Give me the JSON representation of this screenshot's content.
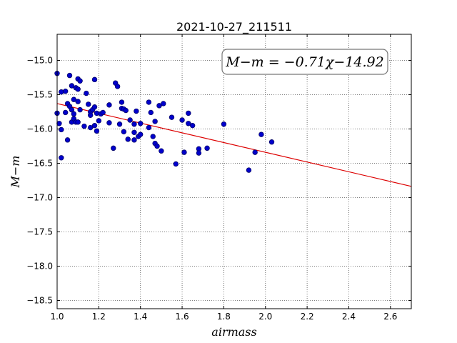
{
  "chart_data": {
    "type": "scatter",
    "title": "2021-10-27_211511",
    "xlabel": "airmass",
    "ylabel": "M−m",
    "xlim": [
      1.0,
      2.7
    ],
    "ylim": [
      -18.62,
      -14.62
    ],
    "x_ticks": [
      "1.0",
      "1.2",
      "1.4",
      "1.6",
      "1.8",
      "2.0",
      "2.2",
      "2.4",
      "2.6"
    ],
    "y_ticks": [
      "−15.0",
      "−15.5",
      "−16.0",
      "−16.5",
      "−17.0",
      "−17.5",
      "−18.0",
      "−18.5"
    ],
    "grid": true,
    "annotation": "M−m = −0.71χ−14.92",
    "fit": {
      "slope": -0.71,
      "intercept": -14.92,
      "color": "#dd0000"
    },
    "point_color": "#0000cc",
    "series": [
      {
        "points": [
          [
            1.0,
            -15.19
          ],
          [
            1.0,
            -15.77
          ],
          [
            1.01,
            -15.92
          ],
          [
            1.02,
            -16.42
          ],
          [
            1.02,
            -15.46
          ],
          [
            1.02,
            -16.01
          ],
          [
            1.04,
            -15.45
          ],
          [
            1.04,
            -15.76
          ],
          [
            1.05,
            -16.16
          ],
          [
            1.05,
            -15.63
          ],
          [
            1.06,
            -15.22
          ],
          [
            1.06,
            -15.67
          ],
          [
            1.07,
            -15.37
          ],
          [
            1.07,
            -15.72
          ],
          [
            1.07,
            -15.9
          ],
          [
            1.08,
            -15.57
          ],
          [
            1.08,
            -15.78
          ],
          [
            1.08,
            -15.85
          ],
          [
            1.09,
            -15.4
          ],
          [
            1.09,
            -15.9
          ],
          [
            1.1,
            -15.6
          ],
          [
            1.1,
            -15.27
          ],
          [
            1.1,
            -15.42
          ],
          [
            1.1,
            -15.9
          ],
          [
            1.11,
            -15.3
          ],
          [
            1.11,
            -15.72
          ],
          [
            1.13,
            -15.96
          ],
          [
            1.14,
            -15.48
          ],
          [
            1.15,
            -15.64
          ],
          [
            1.16,
            -15.75
          ],
          [
            1.16,
            -15.8
          ],
          [
            1.16,
            -15.98
          ],
          [
            1.17,
            -15.72
          ],
          [
            1.18,
            -15.68
          ],
          [
            1.18,
            -15.28
          ],
          [
            1.18,
            -15.95
          ],
          [
            1.19,
            -16.03
          ],
          [
            1.19,
            -15.77
          ],
          [
            1.2,
            -15.88
          ],
          [
            1.21,
            -15.78
          ],
          [
            1.22,
            -15.76
          ],
          [
            1.25,
            -15.65
          ],
          [
            1.25,
            -15.91
          ],
          [
            1.27,
            -16.28
          ],
          [
            1.28,
            -15.33
          ],
          [
            1.29,
            -15.38
          ],
          [
            1.3,
            -15.93
          ],
          [
            1.31,
            -15.61
          ],
          [
            1.31,
            -15.7
          ],
          [
            1.32,
            -16.04
          ],
          [
            1.32,
            -15.71
          ],
          [
            1.33,
            -15.73
          ],
          [
            1.34,
            -16.15
          ],
          [
            1.35,
            -15.87
          ],
          [
            1.37,
            -16.16
          ],
          [
            1.37,
            -16.05
          ],
          [
            1.37,
            -15.93
          ],
          [
            1.38,
            -15.74
          ],
          [
            1.39,
            -16.11
          ],
          [
            1.4,
            -15.92
          ],
          [
            1.4,
            -16.08
          ],
          [
            1.44,
            -15.61
          ],
          [
            1.44,
            -15.98
          ],
          [
            1.45,
            -15.76
          ],
          [
            1.46,
            -16.11
          ],
          [
            1.47,
            -15.89
          ],
          [
            1.47,
            -16.21
          ],
          [
            1.48,
            -16.25
          ],
          [
            1.49,
            -15.66
          ],
          [
            1.5,
            -16.32
          ],
          [
            1.51,
            -15.63
          ],
          [
            1.55,
            -15.83
          ],
          [
            1.57,
            -16.51
          ],
          [
            1.6,
            -15.87
          ],
          [
            1.61,
            -16.34
          ],
          [
            1.63,
            -15.77
          ],
          [
            1.63,
            -15.92
          ],
          [
            1.65,
            -15.95
          ],
          [
            1.68,
            -16.29
          ],
          [
            1.68,
            -16.35
          ],
          [
            1.72,
            -16.28
          ],
          [
            1.8,
            -15.93
          ],
          [
            1.92,
            -16.6
          ],
          [
            1.95,
            -16.34
          ],
          [
            1.98,
            -16.08
          ],
          [
            2.03,
            -16.19
          ]
        ]
      }
    ]
  }
}
